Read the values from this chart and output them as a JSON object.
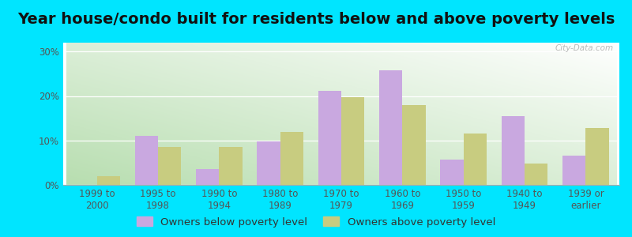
{
  "title": "Year house/condo built for residents below and above poverty levels",
  "categories": [
    "1999 to\n2000",
    "1995 to\n1998",
    "1990 to\n1994",
    "1980 to\n1989",
    "1970 to\n1979",
    "1960 to\n1969",
    "1950 to\n1959",
    "1940 to\n1949",
    "1939 or\nearlier"
  ],
  "below_poverty": [
    0.0,
    11.0,
    3.5,
    9.7,
    21.2,
    25.8,
    5.7,
    15.5,
    6.5
  ],
  "above_poverty": [
    2.0,
    8.5,
    8.5,
    12.0,
    19.8,
    18.0,
    11.5,
    4.8,
    12.8
  ],
  "below_color": "#c9a8e0",
  "above_color": "#c8cc80",
  "background_outer": "#00e5ff",
  "yticks": [
    0,
    10,
    20,
    30
  ],
  "ylim": [
    0,
    32
  ],
  "legend_below": "Owners below poverty level",
  "legend_above": "Owners above poverty level",
  "title_fontsize": 14,
  "tick_fontsize": 8.5,
  "legend_fontsize": 9.5,
  "watermark": "City-Data.com"
}
